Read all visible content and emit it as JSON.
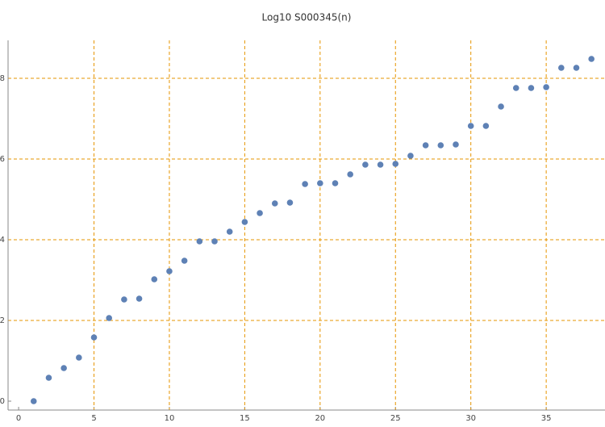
{
  "chart_data": {
    "type": "scatter",
    "title": "Log10 S000345(n)",
    "x": [
      1,
      2,
      3,
      4,
      5,
      6,
      7,
      8,
      9,
      10,
      11,
      12,
      13,
      14,
      15,
      16,
      17,
      18,
      19,
      20,
      21,
      22,
      23,
      24,
      25,
      26,
      27,
      28,
      29,
      30,
      31,
      32,
      33,
      34,
      35,
      36,
      37,
      38
    ],
    "values": [
      0,
      0.58,
      0.82,
      1.08,
      1.58,
      2.06,
      2.52,
      2.54,
      3.02,
      3.22,
      3.48,
      3.96,
      3.96,
      4.2,
      4.44,
      4.66,
      4.9,
      4.92,
      5.38,
      5.4,
      5.4,
      5.62,
      5.86,
      5.86,
      5.88,
      6.08,
      6.34,
      6.34,
      6.36,
      6.82,
      6.82,
      7.3,
      7.76,
      7.76,
      7.78,
      8.26,
      8.26,
      8.48
    ],
    "color": "#5e81b5",
    "xlim": [
      -0.7,
      38.9
    ],
    "ylim": [
      -0.22,
      8.94
    ],
    "xticks": [
      0,
      5,
      10,
      15,
      20,
      25,
      30,
      35
    ],
    "yticks": [
      0,
      2,
      4,
      6,
      8
    ],
    "grid": true,
    "grid_color": "#e69500"
  }
}
